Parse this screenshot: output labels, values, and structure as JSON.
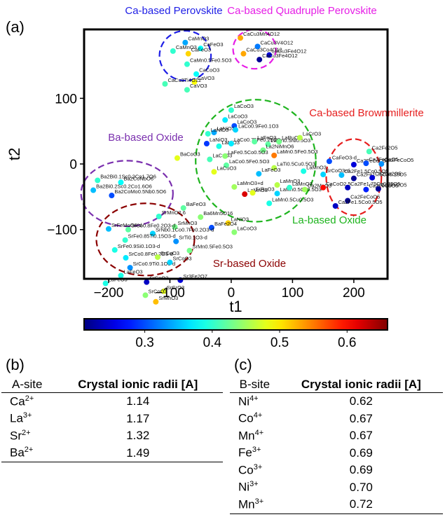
{
  "panels": {
    "a": "(a)",
    "b": "(b)",
    "c": "(c)"
  },
  "chart_data": {
    "type": "scatter",
    "xlabel": "t1",
    "ylabel": "t2",
    "xlim": [
      -240,
      255
    ],
    "ylim": [
      -175,
      205
    ],
    "xticks": [
      -200,
      -100,
      0,
      100,
      200
    ],
    "yticks": [
      -100,
      0,
      100
    ],
    "colorbar": {
      "colormap": "jet",
      "range": [
        0.21,
        0.66
      ],
      "ticks": [
        0.3,
        0.4,
        0.5,
        0.6
      ]
    },
    "clusters": [
      {
        "label": "Ca-based Perovskite",
        "color": "#1e1ee6",
        "cx": -75,
        "cy": 165,
        "rx": 42,
        "ry": 38
      },
      {
        "label": "Ca-based Quadruple Perovskite",
        "color": "#e61ee6",
        "cx": 38,
        "cy": 175,
        "rx": 35,
        "ry": 30
      },
      {
        "label": "Ca-based Brownmillerite",
        "color": "#e61e1e",
        "cx": 200,
        "cy": -20,
        "rx": 45,
        "ry": 58
      },
      {
        "label": "Ba-based Oxide",
        "color": "#7a2fae",
        "cx": -170,
        "cy": -45,
        "rx": 75,
        "ry": 50
      },
      {
        "label": "La-based Oxide",
        "color": "#1eb41e",
        "cx": 40,
        "cy": 5,
        "rx": 98,
        "ry": 93
      },
      {
        "label": "Sr-based Oxide",
        "color": "#8b0000",
        "cx": -140,
        "cy": -115,
        "rx": 80,
        "ry": 55
      }
    ],
    "points": [
      {
        "label": "CaMnO3",
        "x": -75,
        "y": 185,
        "v": 0.34
      },
      {
        "label": "CaFeO3",
        "x": -50,
        "y": 176,
        "v": 0.38
      },
      {
        "label": "CaMnO3",
        "x": -95,
        "y": 172,
        "v": 0.4
      },
      {
        "label": "CaFeO3",
        "x": -70,
        "y": 168,
        "v": 0.51
      },
      {
        "label": "CaMn0.5Fe0.5O3",
        "x": -72,
        "y": 152,
        "v": 0.4
      },
      {
        "label": "CaCoO3",
        "x": -57,
        "y": 137,
        "v": 0.38
      },
      {
        "label": "CaVO3",
        "x": -60,
        "y": 125,
        "v": 0.49
      },
      {
        "label": "CaVO3",
        "x": -72,
        "y": 113,
        "v": 0.41
      },
      {
        "label": "CaCu3Ti4O12",
        "x": -108,
        "y": 122,
        "v": 0.41
      },
      {
        "label": "CaCu3Mn4O12",
        "x": 15,
        "y": 192,
        "v": 0.53
      },
      {
        "label": "CaCu3Co4O12",
        "x": 20,
        "y": 168,
        "v": 0.53
      },
      {
        "label": "CaCu3V4O12",
        "x": 43,
        "y": 179,
        "v": 0.32
      },
      {
        "label": "LaCu3Fe4O12",
        "x": 62,
        "y": 166,
        "v": 0.25
      },
      {
        "label": "CaCu3Fe4O12",
        "x": 46,
        "y": 159,
        "v": 0.22
      },
      {
        "label": "LaCoO3",
        "x": 0,
        "y": 82,
        "v": 0.4
      },
      {
        "label": "LaCoO3",
        "x": -10,
        "y": 67,
        "v": 0.37
      },
      {
        "label": "LaCoO3",
        "x": 5,
        "y": 58,
        "v": 0.3
      },
      {
        "label": "LaNiO3",
        "x": -28,
        "y": 48,
        "v": 0.34
      },
      {
        "label": "LaNiO3",
        "x": -38,
        "y": 46,
        "v": 0.4
      },
      {
        "label": "LaCo0.9Fe0.1O3",
        "x": 7,
        "y": 52,
        "v": 0.36
      },
      {
        "label": "LaNiO3",
        "x": -40,
        "y": 31,
        "v": 0.29
      },
      {
        "label": "LaNiO3",
        "x": -20,
        "y": 27,
        "v": 0.39
      },
      {
        "label": "LaCo0.75Fe0.25O3",
        "x": 0,
        "y": 31,
        "v": 0.37
      },
      {
        "label": "LaMn0.5Ni0.5O3",
        "x": 60,
        "y": 30,
        "v": 0.42
      },
      {
        "label": "LaFeO3",
        "x": 38,
        "y": 34,
        "v": 0.42
      },
      {
        "label": "LaRuO3",
        "x": 78,
        "y": 34,
        "v": 0.43
      },
      {
        "label": "LaCrO3",
        "x": 112,
        "y": 40,
        "v": 0.46
      },
      {
        "label": "La2NiMnO6",
        "x": 52,
        "y": 21,
        "v": 0.43
      },
      {
        "label": "LaMn0.5Fe0.5O3",
        "x": 70,
        "y": 13,
        "v": 0.55
      },
      {
        "label": "LaCuO3",
        "x": -35,
        "y": 7,
        "v": 0.41
      },
      {
        "label": "LaFe0.5Co0.5O3",
        "x": -10,
        "y": 12,
        "v": 0.44
      },
      {
        "label": "LaCo0.5Fe0.5O3",
        "x": -8,
        "y": -2,
        "v": 0.42
      },
      {
        "label": "LaTi0.5Cu0.5O3",
        "x": 70,
        "y": -6,
        "v": 0.46
      },
      {
        "label": "LaFeO3",
        "x": 45,
        "y": -15,
        "v": 0.35
      },
      {
        "label": "LaCuO3",
        "x": -28,
        "y": -12,
        "v": 0.48
      },
      {
        "label": "LaMnO3",
        "x": 118,
        "y": -11,
        "v": 0.39
      },
      {
        "label": "LaMnO3",
        "x": 75,
        "y": -32,
        "v": 0.46
      },
      {
        "label": "LaMnO3+d",
        "x": 5,
        "y": -35,
        "v": 0.45
      },
      {
        "label": "LaMnO3",
        "x": 22,
        "y": -46,
        "v": 0.62
      },
      {
        "label": "SrRuO3",
        "x": 35,
        "y": -44,
        "v": 0.48
      },
      {
        "label": "LaMn0.5Cu0.5O3",
        "x": 75,
        "y": -45,
        "v": 0.36
      },
      {
        "label": "LaMnO3",
        "x": 95,
        "y": -36,
        "v": 0.4
      },
      {
        "label": "Ca2MnO3",
        "x": 120,
        "y": -39,
        "v": 0.45
      },
      {
        "label": "LaMn0.5Cu0.5O3",
        "x": 62,
        "y": -60,
        "v": 0.39
      },
      {
        "label": "LaNiO3",
        "x": -5,
        "y": -90,
        "v": 0.51
      },
      {
        "label": "LaCoO3",
        "x": 5,
        "y": -104,
        "v": 0.44
      },
      {
        "label": "Ca2Fe2O5",
        "x": 225,
        "y": 19,
        "v": 0.41
      },
      {
        "label": "CaFeO3-d",
        "x": 160,
        "y": 4,
        "v": 0.3
      },
      {
        "label": "Ca2FeCoO5",
        "x": 200,
        "y": -1,
        "v": 0.25
      },
      {
        "label": "Ca2FeCoO5",
        "x": 220,
        "y": 1,
        "v": 0.3
      },
      {
        "label": "Ca2FeCoO5",
        "x": 245,
        "y": 0,
        "v": 0.33
      },
      {
        "label": "SrCoO3-d",
        "x": 150,
        "y": -16,
        "v": 0.36
      },
      {
        "label": "Ca2Fe1.5Co0.5O5",
        "x": 180,
        "y": -17,
        "v": 0.35
      },
      {
        "label": "Ca2Fe1.75Co0.25O5",
        "x": 200,
        "y": -22,
        "v": 0.22
      },
      {
        "label": "Ca2Co2O5",
        "x": 230,
        "y": -21,
        "v": 0.25
      },
      {
        "label": "CaCoO2.5",
        "x": 150,
        "y": -36,
        "v": 0.6
      },
      {
        "label": "Ca2Fe1.75Co0.25O5",
        "x": 190,
        "y": -36,
        "v": 0.24
      },
      {
        "label": "Ca2FeCoO5",
        "x": 220,
        "y": -39,
        "v": 0.28
      },
      {
        "label": "Ca2Fe2O5",
        "x": 240,
        "y": -38,
        "v": 0.22
      },
      {
        "label": "Ca2FeCoO5",
        "x": 190,
        "y": -56,
        "v": 0.22
      },
      {
        "label": "Ca2Fe1.5Co0.5O5",
        "x": 170,
        "y": -64,
        "v": 0.24
      },
      {
        "label": "BaCoO3",
        "x": -88,
        "y": 9,
        "v": 0.48
      },
      {
        "label": "Ba2Bi0.1Sc0.2Co1.7O6",
        "x": -218,
        "y": -25,
        "v": 0.4
      },
      {
        "label": "Ba2CoNbO6",
        "x": -180,
        "y": -28,
        "v": 0.38
      },
      {
        "label": "Ba2Bi0.2Sc0.2Co1.6O6",
        "x": -225,
        "y": -40,
        "v": 0.35
      },
      {
        "label": "Ba2CoMo0.5Nb0.5O6",
        "x": -195,
        "y": -48,
        "v": 0.3
      },
      {
        "label": "BaFeO3",
        "x": -78,
        "y": -67,
        "v": 0.42
      },
      {
        "label": "Ba6Mn5O16",
        "x": -50,
        "y": -81,
        "v": 0.44
      },
      {
        "label": "BaFe2O4",
        "x": -32,
        "y": -97,
        "v": 0.3
      },
      {
        "label": "SrMnO2.6",
        "x": -118,
        "y": -80,
        "v": 0.4
      },
      {
        "label": "SrMnO3",
        "x": -92,
        "y": -96,
        "v": 0.43
      },
      {
        "label": "SrCo0.8Fe0.2O3-d",
        "x": -168,
        "y": -100,
        "v": 0.42
      },
      {
        "label": "SrFeMoO6-d",
        "x": -200,
        "y": -99,
        "v": 0.35
      },
      {
        "label": "SrNb0.1Co0.7Fe0.2O3-d",
        "x": -128,
        "y": -106,
        "v": 0.36
      },
      {
        "label": "SrFe0.85Ti0.15O3-d",
        "x": -173,
        "y": -116,
        "v": 0.4
      },
      {
        "label": "SrTi0.1O3-d",
        "x": -90,
        "y": -118,
        "v": 0.33
      },
      {
        "label": "SrFe0.9Si0.1O3-d",
        "x": -190,
        "y": -131,
        "v": 0.39
      },
      {
        "label": "SrCo0.8Fe0.2O3-d",
        "x": -172,
        "y": -143,
        "v": 0.37
      },
      {
        "label": "SrCoO3",
        "x": -120,
        "y": -142,
        "v": 0.46
      },
      {
        "label": "SrMn0.5Fe0.5O3",
        "x": -68,
        "y": -132,
        "v": 0.43
      },
      {
        "label": "SrCo0.9Ti0.1O3-d",
        "x": -165,
        "y": -158,
        "v": 0.33
      },
      {
        "label": "SrCoO3",
        "x": -100,
        "y": -150,
        "v": 0.36
      },
      {
        "label": "LaFeO3",
        "x": -180,
        "y": -170,
        "v": 0.39
      },
      {
        "label": "LaFeO3",
        "x": -205,
        "y": -182,
        "v": 0.39
      },
      {
        "label": "Sr3Fe2O7",
        "x": -83,
        "y": -177,
        "v": 0.25
      },
      {
        "label": "SrCoO3",
        "x": -138,
        "y": -180,
        "v": 0.24
      },
      {
        "label": "SrCrO3",
        "x": -110,
        "y": -194,
        "v": 0.48
      },
      {
        "label": "SrCoO3",
        "x": -140,
        "y": -200,
        "v": 0.44
      },
      {
        "label": "SrMnO3",
        "x": -123,
        "y": -210,
        "v": 0.52
      }
    ]
  },
  "table_a_site": {
    "headers": [
      "A-site",
      "Crystal ionic radii [A]"
    ],
    "rows": [
      {
        "ion": "Ca",
        "charge": "2+",
        "radius": "1.14"
      },
      {
        "ion": "La",
        "charge": "3+",
        "radius": "1.17"
      },
      {
        "ion": "Sr",
        "charge": "2+",
        "radius": "1.32"
      },
      {
        "ion": "Ba",
        "charge": "2+",
        "radius": "1.49"
      }
    ]
  },
  "table_b_site": {
    "headers": [
      "B-site",
      "Crystal ionic radii [A]"
    ],
    "rows": [
      {
        "ion": "Ni",
        "charge": "4+",
        "radius": "0.62"
      },
      {
        "ion": "Co",
        "charge": "4+",
        "radius": "0.67"
      },
      {
        "ion": "Mn",
        "charge": "4+",
        "radius": "0.67"
      },
      {
        "ion": "Fe",
        "charge": "3+",
        "radius": "0.69"
      },
      {
        "ion": "Co",
        "charge": "3+",
        "radius": "0.69"
      },
      {
        "ion": "Ni",
        "charge": "3+",
        "radius": "0.70"
      },
      {
        "ion": "Mn",
        "charge": "3+",
        "radius": "0.72"
      }
    ]
  }
}
